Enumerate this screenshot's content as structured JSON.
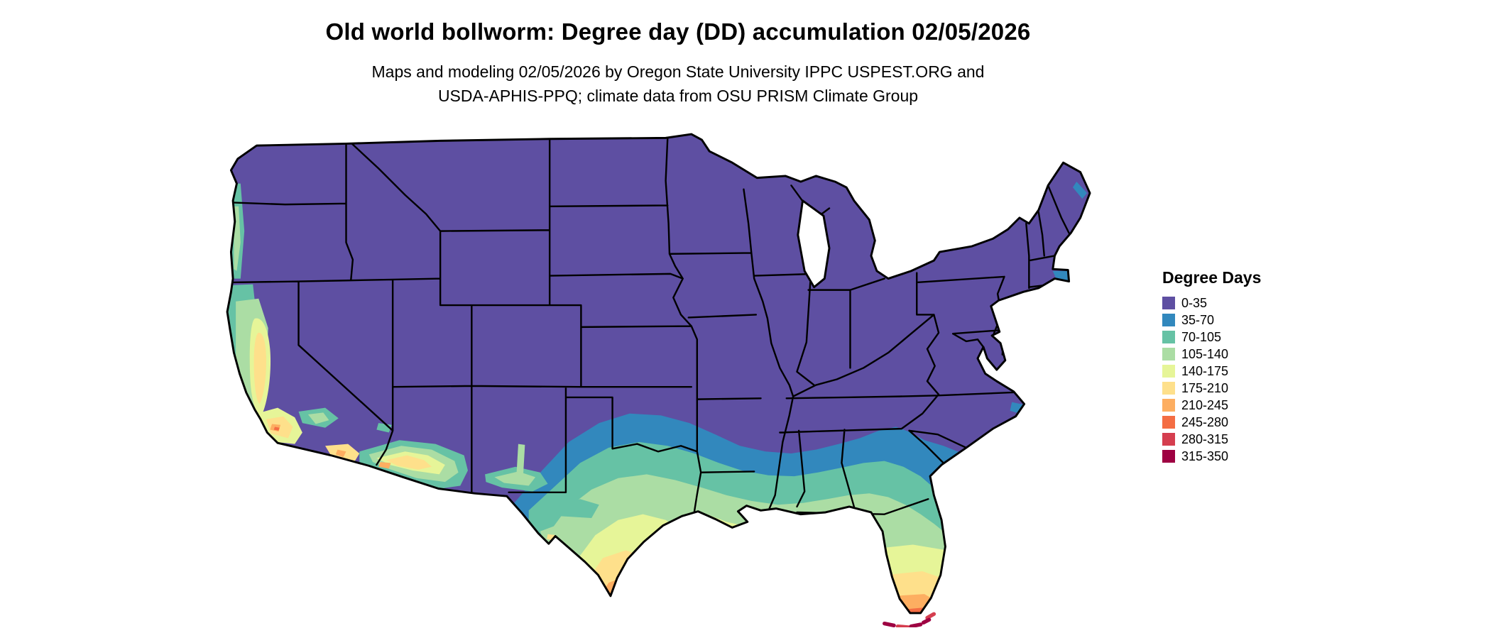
{
  "header": {
    "title": "Old world bollworm: Degree day (DD) accumulation 02/05/2026",
    "subtitle_line1": "Maps and modeling 02/05/2026 by Oregon State University IPPC USPEST.ORG and",
    "subtitle_line2": "USDA-APHIS-PPQ; climate data from OSU PRISM Climate Group"
  },
  "legend": {
    "title": "Degree Days",
    "items": [
      {
        "label": "0-35",
        "color": "#5e4fa2"
      },
      {
        "label": "35-70",
        "color": "#3288bd"
      },
      {
        "label": "70-105",
        "color": "#66c2a5"
      },
      {
        "label": "105-140",
        "color": "#abdda4"
      },
      {
        "label": "140-175",
        "color": "#e6f598"
      },
      {
        "label": "175-210",
        "color": "#fee08b"
      },
      {
        "label": "210-245",
        "color": "#fdae61"
      },
      {
        "label": "245-280",
        "color": "#f46d43"
      },
      {
        "label": "280-315",
        "color": "#d53e4f"
      },
      {
        "label": "315-350",
        "color": "#9e0142"
      }
    ]
  },
  "map": {
    "area_label": "Contiguous United States",
    "border_color": "#000000",
    "background": "#ffffff",
    "unit": "Degree days (DD)",
    "regions_by_bin": [
      {
        "bin": "0-35",
        "areas": "Most of the northern and central US"
      },
      {
        "bin": "35-70",
        "areas": "Central Texas, southern Oklahoma and Arkansas, central Mississippi/Alabama/Georgia, coastal Carolinas"
      },
      {
        "bin": "70-105",
        "areas": "South-central Texas, Gulf coastal plain, coastal California, southern Arizona and New Mexico"
      },
      {
        "bin": "105-140",
        "areas": "Southern Texas, Gulf coast, northern Florida, California Central Valley fringe"
      },
      {
        "bin": "140-175",
        "areas": "Texas coastal bend, Louisiana delta, central Florida, California valleys, southern Arizona lowlands"
      },
      {
        "bin": "175-210",
        "areas": "Deep south Texas, south-central Florida, Imperial Valley and Phoenix area"
      },
      {
        "bin": "210-245",
        "areas": "Rio Grande Valley tip of Texas, southern Florida"
      },
      {
        "bin": "245-280",
        "areas": "Extreme southern Texas tip, far southern Florida"
      },
      {
        "bin": "280-315",
        "areas": "Southern tip of Florida and upper Keys"
      },
      {
        "bin": "315-350",
        "areas": "Florida Keys"
      }
    ]
  }
}
